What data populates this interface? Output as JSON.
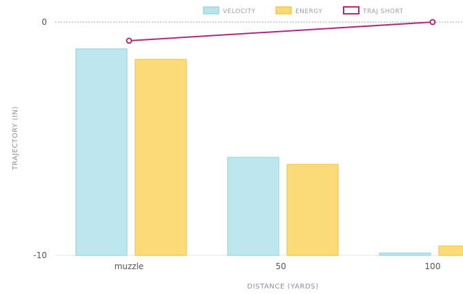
{
  "chart_data": {
    "type": "bar",
    "categories": [
      "muzzle",
      "50",
      "100"
    ],
    "series": [
      {
        "name": "VELOCITY",
        "kind": "bar",
        "values": [
          -1.15,
          -5.8,
          -9.9
        ],
        "color": "#b8e4ec",
        "stroke": "#9fd6e1"
      },
      {
        "name": "ENERGY",
        "kind": "bar",
        "values": [
          -1.6,
          -6.1,
          -9.6
        ],
        "color": "#fbd96b",
        "stroke": "#f2c94c"
      },
      {
        "name": "TRAJ SHORT",
        "kind": "line",
        "values": [
          -0.8,
          null,
          0
        ],
        "color": "#b0287a"
      }
    ],
    "xlabel": "DISTANCE (YARDS)",
    "ylabel": "TRAJECTORY (IN)",
    "ylim": [
      -10,
      0
    ],
    "yticks": [
      "0",
      "-10"
    ],
    "legend_position": "top"
  }
}
